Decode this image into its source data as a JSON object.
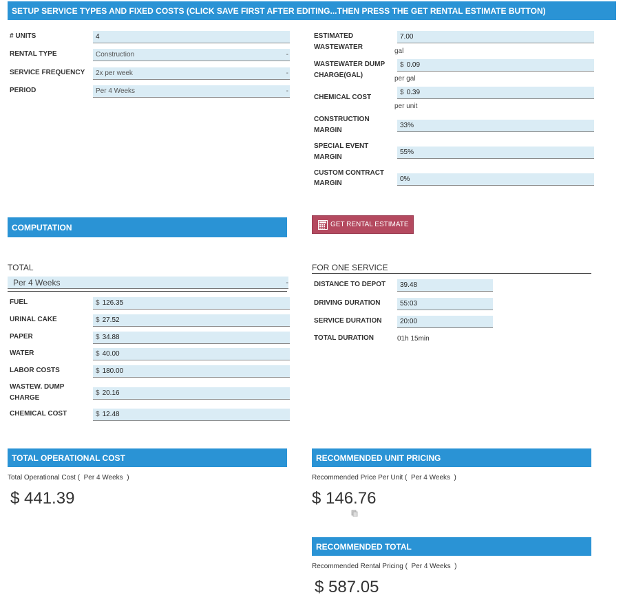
{
  "setup": {
    "banner": "SETUP SERVICE TYPES AND FIXED COSTS (CLICK SAVE FIRST AFTER EDITING...THEN PRESS THE GET RENTAL ESTIMATE BUTTON)",
    "units_label": "# UNITS",
    "units_value": "4",
    "rental_type_label": "RENTAL TYPE",
    "rental_type_value": "Construction",
    "frequency_label": "SERVICE FREQUENCY",
    "frequency_value": "2x per week",
    "period_label": "PERIOD",
    "period_value": "Per 4 Weeks",
    "caret": "-",
    "ww_label_1": "ESTIMATED",
    "ww_label_2": "WASTEWATER",
    "ww_value": "7.00",
    "ww_unit": "gal",
    "dump_label_1": "WASTEWATER DUMP",
    "dump_label_2": "CHARGE(GAL)",
    "dump_value": "0.09",
    "dump_unit": "per gal",
    "chem_label": "CHEMICAL COST",
    "chem_value": "0.39",
    "chem_unit": "per unit",
    "cm_label_1": "CONSTRUCTION",
    "cm_label_2": "MARGIN",
    "cm_value": "33%",
    "se_label_1": "SPECIAL EVENT",
    "se_label_2": "MARGIN",
    "se_value": "55%",
    "cc_label_1": "CUSTOM CONTRACT",
    "cc_label_2": "MARGIN",
    "cc_value": "0%",
    "currency": "$"
  },
  "computation": {
    "banner": "COMPUTATION",
    "button_label": "GET RENTAL ESTIMATE",
    "total_title": "TOTAL",
    "total_period": "Per 4 Weeks",
    "fuel_label": "FUEL",
    "fuel_value": "126.35",
    "urinal_label": "URINAL CAKE",
    "urinal_value": "27.52",
    "paper_label": "PAPER",
    "paper_value": "34.88",
    "water_label": "WATER",
    "water_value": "40.00",
    "labor_label": "LABOR COSTS",
    "labor_value": "180.00",
    "wdump_label_1": "WASTEW. DUMP",
    "wdump_label_2": "CHARGE",
    "wdump_value": "20.16",
    "chemical_label": "CHEMICAL COST",
    "chemical_value": "12.48",
    "one_service_title": "FOR ONE SERVICE",
    "distance_label": "DISTANCE TO DEPOT",
    "distance_value": "39.48",
    "driving_label": "DRIVING DURATION",
    "driving_value": "55:03",
    "service_label": "SERVICE DURATION",
    "service_value": "20:00",
    "total_dur_label": "TOTAL DURATION",
    "total_dur_value": "01h 15min"
  },
  "totals": {
    "op_banner": "TOTAL OPERATIONAL COST",
    "op_caption": "Total Operational Cost (  Per 4 Weeks  )",
    "op_value": "$ 441.39",
    "unit_banner": "RECOMMENDED UNIT PRICING",
    "unit_caption": "Recommended Price Per Unit (  Per 4 Weeks  )",
    "unit_value": "$ 146.76",
    "rec_banner": "RECOMMENDED TOTAL",
    "rec_caption": "Recommended Rental Pricing (  Per 4 Weeks  )",
    "rec_value": "$ 587.05"
  },
  "colors": {
    "banner": "#2a93d5",
    "field": "#daecf5",
    "button": "#b4495f"
  }
}
